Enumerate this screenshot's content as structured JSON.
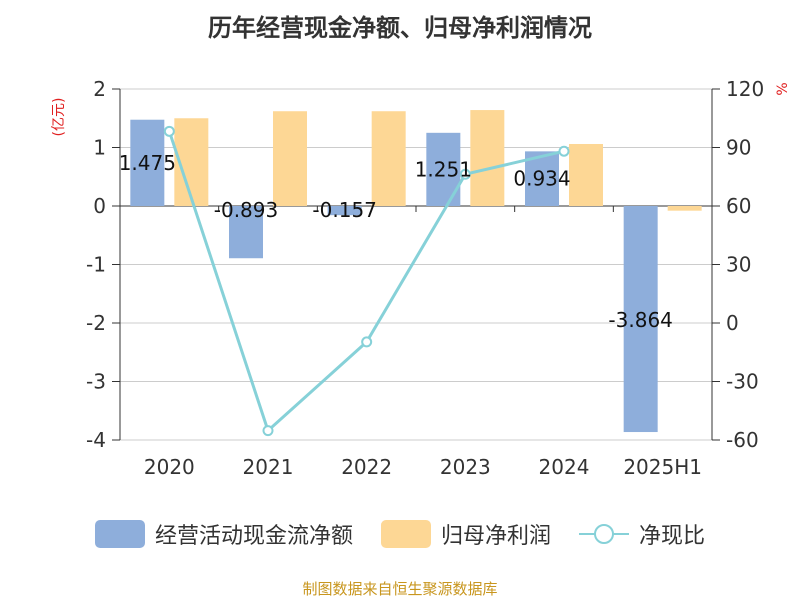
{
  "chart_data": {
    "type": "bar",
    "title": "历年经营现金净额、归母净利润情况",
    "categories": [
      "2020",
      "2021",
      "2022",
      "2023",
      "2024",
      "2025H1"
    ],
    "series": [
      {
        "name": "经营活动现金流净额",
        "axis": "left",
        "color": "#8eaedb",
        "values": [
          1.475,
          -0.893,
          -0.157,
          1.251,
          0.934,
          -3.864
        ],
        "labels": [
          "1.475",
          "-0.893",
          "-0.157",
          "1.251",
          "0.934",
          "-3.864"
        ]
      },
      {
        "name": "归母净利润",
        "axis": "left",
        "color": "#fdd795",
        "values": [
          1.5,
          1.62,
          1.62,
          1.64,
          1.06,
          -0.08
        ]
      },
      {
        "name": "净现比",
        "axis": "right",
        "type": "line",
        "color": "#86d1d8",
        "values": [
          98.3,
          -55.2,
          -9.7,
          76.3,
          88.1,
          null
        ]
      }
    ],
    "y_left": {
      "unit": "(亿元)",
      "ylim": [
        -4,
        2
      ],
      "ticks": [
        "2",
        "1",
        "0",
        "-1",
        "-2",
        "-3",
        "-4"
      ]
    },
    "y_right": {
      "unit": "%",
      "ylim": [
        -60,
        120
      ],
      "ticks": [
        "120",
        "90",
        "60",
        "30",
        "0",
        "-30",
        "-60"
      ]
    },
    "grid": true,
    "legend_position": "bottom"
  },
  "source": "制图数据来自恒生聚源数据库"
}
